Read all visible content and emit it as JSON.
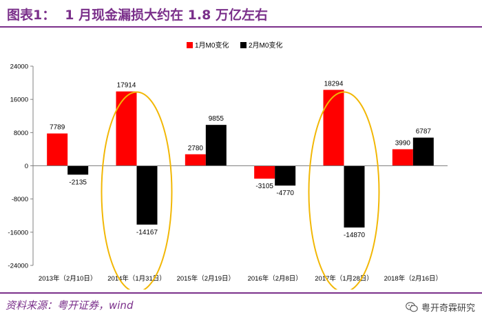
{
  "header": {
    "figure_number": "图表1：",
    "title": "1 月现金漏损大约在 1.8 万亿左右"
  },
  "footer": {
    "source": "资料来源：粤开证券，wind",
    "watermark": "粤开奇霖研究",
    "watermark_icon": "wechat-icon"
  },
  "colors": {
    "accent": "#7a2f8a",
    "series_1": "#ff0000",
    "series_2": "#000000",
    "highlight_ellipse": "#f2b705"
  },
  "chart_data": {
    "type": "bar",
    "title": "",
    "xlabel": "",
    "ylabel": "",
    "categories": [
      "2013年（2月10日）",
      "2014年（1月31日）",
      "2015年（2月19日）",
      "2016年（2月8日）",
      "2017年（1月28日）",
      "2018年（2月16日）"
    ],
    "series": [
      {
        "name": "1月M0变化",
        "values": [
          7789,
          17914,
          2780,
          -3105,
          18294,
          3990
        ]
      },
      {
        "name": "2月M0变化",
        "values": [
          -2135,
          -14167,
          9855,
          -4770,
          -14870,
          6787
        ]
      }
    ],
    "ylim": [
      -24000,
      24000
    ],
    "yticks": [
      -24000,
      -16000,
      -8000,
      0,
      8000,
      16000,
      24000
    ],
    "legend_position": "top-center",
    "grid": false,
    "highlighted_categories": [
      "2014年（1月31日）",
      "2017年（1月28日）"
    ]
  }
}
